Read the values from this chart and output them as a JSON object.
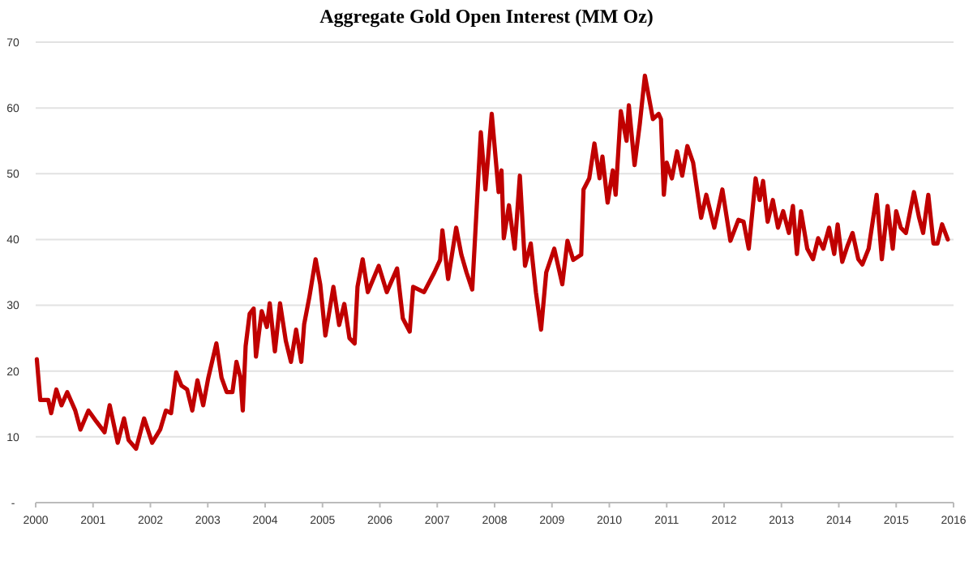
{
  "chart_data": {
    "type": "line",
    "title": "Aggregate Gold Open Interest (MM Oz)",
    "xlim": [
      2000,
      2016
    ],
    "xticks": [
      2000,
      2001,
      2002,
      2003,
      2004,
      2005,
      2006,
      2007,
      2008,
      2009,
      2010,
      2011,
      2012,
      2013,
      2014,
      2015,
      2016
    ],
    "ylim": [
      0,
      70
    ],
    "yticks": [
      {
        "value": 0,
        "label": "-"
      },
      10,
      20,
      30,
      40,
      50,
      60,
      70
    ],
    "grid": "y",
    "marker": "none",
    "line_style": "solid",
    "series": [
      {
        "color": "#c00000",
        "x": [
          2000.02,
          2000.08,
          2000.22,
          2000.27,
          2000.36,
          2000.45,
          2000.55,
          2000.69,
          2000.78,
          2000.92,
          2001.06,
          2001.2,
          2001.29,
          2001.43,
          2001.54,
          2001.62,
          2001.75,
          2001.89,
          2002.03,
          2002.17,
          2002.27,
          2002.36,
          2002.45,
          2002.54,
          2002.64,
          2002.73,
          2002.82,
          2002.92,
          2003.01,
          2003.15,
          2003.24,
          2003.33,
          2003.43,
          2003.5,
          2003.57,
          2003.61,
          2003.66,
          2003.73,
          2003.8,
          2003.84,
          2003.94,
          2004.03,
          2004.08,
          2004.17,
          2004.26,
          2004.36,
          2004.45,
          2004.54,
          2004.63,
          2004.68,
          2004.77,
          2004.88,
          2004.96,
          2005.05,
          2005.19,
          2005.29,
          2005.38,
          2005.47,
          2005.56,
          2005.61,
          2005.7,
          2005.79,
          2005.98,
          2006.12,
          2006.3,
          2006.4,
          2006.52,
          2006.58,
          2006.77,
          2006.95,
          2007.05,
          2007.09,
          2007.19,
          2007.33,
          2007.42,
          2007.51,
          2007.61,
          2007.7,
          2007.76,
          2007.84,
          2007.95,
          2008.07,
          2008.12,
          2008.16,
          2008.25,
          2008.35,
          2008.44,
          2008.53,
          2008.63,
          2008.72,
          2008.81,
          2008.9,
          2009.04,
          2009.18,
          2009.27,
          2009.37,
          2009.51,
          2009.55,
          2009.65,
          2009.74,
          2009.83,
          2009.88,
          2009.97,
          2010.06,
          2010.11,
          2010.2,
          2010.3,
          2010.34,
          2010.44,
          2010.53,
          2010.62,
          2010.76,
          2010.86,
          2010.9,
          2010.95,
          2011.0,
          2011.09,
          2011.18,
          2011.27,
          2011.36,
          2011.46,
          2011.6,
          2011.69,
          2011.83,
          2011.97,
          2012.11,
          2012.25,
          2012.34,
          2012.43,
          2012.55,
          2012.62,
          2012.68,
          2012.76,
          2012.85,
          2012.94,
          2013.03,
          2013.13,
          2013.2,
          2013.27,
          2013.34,
          2013.45,
          2013.55,
          2013.64,
          2013.73,
          2013.83,
          2013.92,
          2013.98,
          2014.06,
          2014.15,
          2014.24,
          2014.34,
          2014.41,
          2014.52,
          2014.66,
          2014.75,
          2014.85,
          2014.94,
          2015.0,
          2015.08,
          2015.17,
          2015.31,
          2015.4,
          2015.47,
          2015.56,
          2015.65,
          2015.72,
          2015.8,
          2015.9
        ],
        "values": [
          21.8,
          15.6,
          15.6,
          13.6,
          17.2,
          14.8,
          16.8,
          14,
          11.1,
          14,
          12.3,
          10.7,
          14.8,
          9.1,
          12.8,
          9.5,
          8.2,
          12.8,
          9.1,
          11.1,
          14,
          13.6,
          19.8,
          17.8,
          17.2,
          14,
          18.6,
          14.8,
          19,
          24.2,
          19,
          16.8,
          16.8,
          21.4,
          19,
          14,
          23.8,
          28.7,
          29.5,
          22.2,
          29.1,
          26.7,
          30.3,
          23,
          30.3,
          24.6,
          21.4,
          26.3,
          21.4,
          27.1,
          31.2,
          37,
          33.2,
          25.4,
          32.8,
          27,
          30.2,
          25,
          24.2,
          32.8,
          37,
          32,
          36,
          32,
          35.6,
          28,
          26,
          32.8,
          32,
          35,
          36.9,
          41.4,
          34,
          41.8,
          37.7,
          35,
          32.4,
          46.8,
          56.3,
          47.6,
          59.1,
          47.2,
          50.5,
          40.2,
          45.2,
          38.6,
          49.7,
          36,
          39.4,
          32,
          26.3,
          35,
          38.6,
          33.2,
          39.8,
          36.9,
          37.7,
          47.6,
          49.3,
          54.6,
          49.3,
          52.6,
          45.6,
          50.5,
          46.8,
          59.5,
          55,
          60.4,
          51.3,
          57.5,
          64.9,
          58.3,
          59.1,
          58.3,
          46.8,
          51.7,
          49.3,
          53.4,
          49.7,
          54.2,
          51.7,
          43.3,
          46.8,
          41.8,
          47.6,
          39.8,
          43,
          42.7,
          38.6,
          49.3,
          46,
          48.9,
          42.7,
          46,
          41.8,
          44.3,
          41,
          45.1,
          37.8,
          44.3,
          38.6,
          37,
          40.2,
          38.6,
          41.8,
          37.8,
          42.3,
          36.6,
          39,
          41,
          37,
          36.2,
          38.6,
          46.8,
          37,
          45.1,
          38.6,
          44.3,
          41.8,
          41,
          47.2,
          43.3,
          41,
          46.8,
          39.4,
          39.4,
          42.3,
          40
        ]
      }
    ]
  }
}
